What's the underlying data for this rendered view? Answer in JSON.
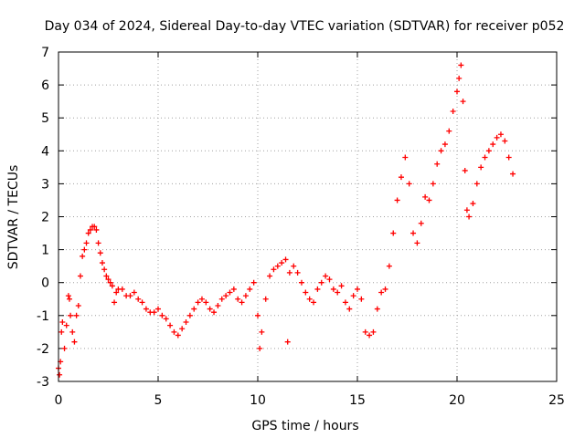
{
  "chart_data": {
    "type": "scatter",
    "title": "Day 034 of 2024, Sidereal Day-to-day VTEC variation (SDTVAR) for receiver p052",
    "xlabel": "GPS time / hours",
    "ylabel": "SDTVAR / TECUs",
    "xlim": [
      0,
      25
    ],
    "ylim": [
      -3,
      7
    ],
    "xticks": [
      "0",
      "5",
      "10",
      "15",
      "20",
      "25"
    ],
    "yticks": [
      "-3",
      "-2",
      "-1",
      "0",
      "1",
      "2",
      "3",
      "4",
      "5",
      "6",
      "7"
    ],
    "grid": true,
    "marker": "+",
    "color": "#ff0000",
    "series": [
      {
        "name": "SDTVAR",
        "x": [
          0.0,
          0.05,
          0.1,
          0.15,
          0.2,
          0.3,
          0.4,
          0.5,
          0.55,
          0.6,
          0.7,
          0.8,
          0.9,
          1.0,
          1.1,
          1.2,
          1.3,
          1.4,
          1.5,
          1.6,
          1.7,
          1.8,
          1.9,
          2.0,
          2.1,
          2.2,
          2.3,
          2.4,
          2.5,
          2.6,
          2.7,
          2.8,
          2.9,
          3.0,
          3.2,
          3.4,
          3.6,
          3.8,
          4.0,
          4.2,
          4.4,
          4.6,
          4.8,
          5.0,
          5.2,
          5.4,
          5.6,
          5.8,
          6.0,
          6.2,
          6.4,
          6.6,
          6.8,
          7.0,
          7.2,
          7.4,
          7.6,
          7.8,
          8.0,
          8.2,
          8.4,
          8.6,
          8.8,
          9.0,
          9.2,
          9.4,
          9.6,
          9.8,
          10.0,
          10.1,
          10.2,
          10.4,
          10.6,
          10.8,
          11.0,
          11.2,
          11.4,
          11.5,
          11.6,
          11.8,
          12.0,
          12.2,
          12.4,
          12.6,
          12.8,
          13.0,
          13.2,
          13.4,
          13.6,
          13.8,
          14.0,
          14.2,
          14.4,
          14.6,
          14.8,
          15.0,
          15.2,
          15.4,
          15.6,
          15.8,
          16.0,
          16.2,
          16.4,
          16.6,
          16.8,
          17.0,
          17.2,
          17.4,
          17.6,
          17.8,
          18.0,
          18.2,
          18.4,
          18.6,
          18.8,
          19.0,
          19.2,
          19.4,
          19.6,
          19.8,
          20.0,
          20.1,
          20.2,
          20.3,
          20.4,
          20.5,
          20.6,
          20.8,
          21.0,
          21.2,
          21.4,
          21.6,
          21.8,
          22.0,
          22.2,
          22.4,
          22.6,
          22.8
        ],
        "y": [
          -2.6,
          -2.8,
          -2.4,
          -1.5,
          -1.2,
          -2.0,
          -1.3,
          -0.4,
          -0.5,
          -1.0,
          -1.5,
          -1.8,
          -1.0,
          -0.7,
          0.2,
          0.8,
          1.0,
          1.2,
          1.5,
          1.6,
          1.7,
          1.7,
          1.6,
          1.2,
          0.9,
          0.6,
          0.4,
          0.2,
          0.1,
          0.0,
          -0.1,
          -0.6,
          -0.3,
          -0.2,
          -0.2,
          -0.4,
          -0.4,
          -0.3,
          -0.5,
          -0.6,
          -0.8,
          -0.9,
          -0.9,
          -0.8,
          -1.0,
          -1.1,
          -1.3,
          -1.5,
          -1.6,
          -1.4,
          -1.2,
          -1.0,
          -0.8,
          -0.6,
          -0.5,
          -0.6,
          -0.8,
          -0.9,
          -0.7,
          -0.5,
          -0.4,
          -0.3,
          -0.2,
          -0.5,
          -0.6,
          -0.4,
          -0.2,
          0.0,
          -1.0,
          -2.0,
          -1.5,
          -0.5,
          0.2,
          0.4,
          0.5,
          0.6,
          0.7,
          -1.8,
          0.3,
          0.5,
          0.3,
          0.0,
          -0.3,
          -0.5,
          -0.6,
          -0.2,
          0.0,
          0.2,
          0.1,
          -0.2,
          -0.3,
          -0.1,
          -0.6,
          -0.8,
          -0.4,
          -0.2,
          -0.5,
          -1.5,
          -1.6,
          -1.5,
          -0.8,
          -0.3,
          -0.2,
          0.5,
          1.5,
          2.5,
          3.2,
          3.8,
          3.0,
          1.5,
          1.2,
          1.8,
          2.6,
          2.5,
          3.0,
          3.6,
          4.0,
          4.2,
          4.6,
          5.2,
          5.8,
          6.2,
          6.6,
          5.5,
          3.4,
          2.2,
          2.0,
          2.4,
          3.0,
          3.5,
          3.8,
          4.0,
          4.2,
          4.4,
          4.5,
          4.3,
          3.8,
          3.3
        ]
      }
    ]
  }
}
